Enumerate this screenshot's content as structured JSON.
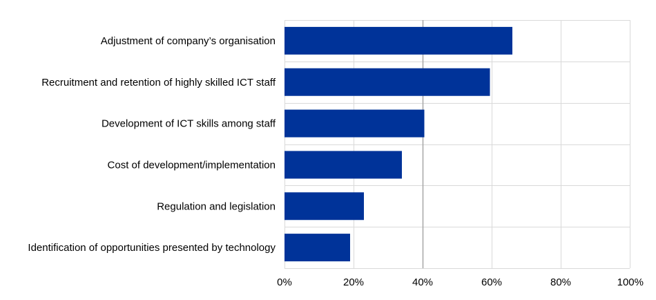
{
  "chart_data": {
    "type": "bar",
    "orientation": "horizontal",
    "title": "",
    "xlabel": "",
    "ylabel": "",
    "categories": [
      "Adjustment of company’s organisation",
      "Recruitment and retention of highly skilled ICT staff",
      "Development of ICT skills among staff",
      "Cost of development/implementation",
      "Regulation and legislation",
      "Identification of opportunities presented by technology"
    ],
    "values": [
      66,
      59.5,
      40.5,
      34,
      23,
      19
    ],
    "xlim": [
      0,
      100
    ],
    "x_ticks": [
      "0%",
      "20%",
      "40%",
      "60%",
      "80%",
      "100%"
    ],
    "x_tick_values": [
      0,
      20,
      40,
      60,
      80,
      100
    ],
    "grid": true,
    "legend": "none",
    "bar_color": "#003399",
    "grid_color": "#d9d9d9",
    "highlight_gridline": 40,
    "highlight_gridline_color": "#a6a6a6"
  }
}
